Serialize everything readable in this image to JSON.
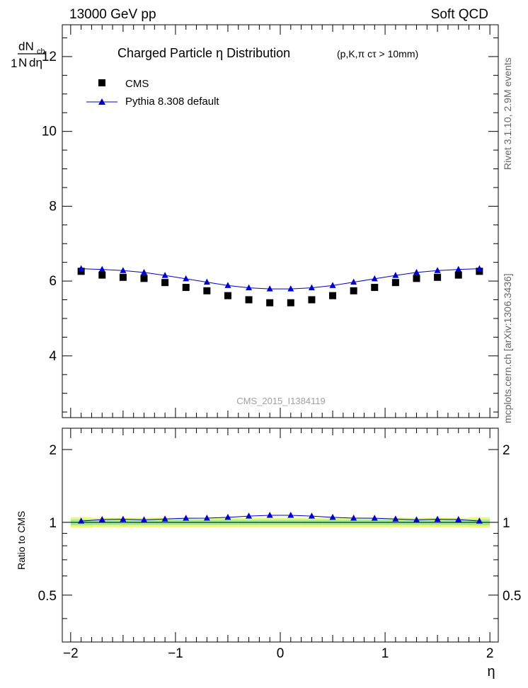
{
  "header": {
    "left": "13000 GeV pp",
    "right": "Soft QCD"
  },
  "side": {
    "rivet": "Rivet 3.1.10,  2.9M events",
    "mcplots": "mcplots.cern.ch [arXiv:1306.3436]"
  },
  "chart_data": [
    {
      "type": "scatter",
      "title": "Charged Particle  η Distribution",
      "subtitle": "(p,K,π cτ > 10mm)",
      "analysis": "CMS_2015_I1384119",
      "ylabel": {
        "one": "1",
        "N": "N",
        "dN": "dN",
        "sub": "ch",
        "deta": "dη"
      },
      "xlim": [
        -2.08,
        2.08
      ],
      "ylim": [
        2.35,
        12.85
      ],
      "yticks": [
        4,
        6,
        8,
        10,
        12
      ],
      "xticks": [
        -2,
        -1,
        0,
        1,
        2
      ],
      "xtick_labels": [
        "−2",
        "−1",
        "0",
        "1",
        "2"
      ],
      "legend": {
        "placement": "top-left"
      },
      "x": [
        -1.9,
        -1.7,
        -1.5,
        -1.3,
        -1.1,
        -0.9,
        -0.7,
        -0.5,
        -0.3,
        -0.1,
        0.1,
        0.3,
        0.5,
        0.7,
        0.9,
        1.1,
        1.3,
        1.5,
        1.7,
        1.9
      ],
      "series": [
        {
          "name": "CMS",
          "marker": "square",
          "color": "#000000",
          "values": [
            6.26,
            6.16,
            6.1,
            6.07,
            5.96,
            5.83,
            5.74,
            5.61,
            5.5,
            5.42,
            5.42,
            5.5,
            5.61,
            5.74,
            5.83,
            5.96,
            6.07,
            6.1,
            6.16,
            6.26
          ]
        },
        {
          "name": "Pythia 8.308 default",
          "marker": "triangle",
          "color": "#0000cc",
          "values": [
            6.33,
            6.31,
            6.28,
            6.23,
            6.15,
            6.06,
            5.97,
            5.88,
            5.82,
            5.79,
            5.79,
            5.82,
            5.88,
            5.97,
            6.06,
            6.15,
            6.23,
            6.28,
            6.31,
            6.33
          ]
        }
      ]
    },
    {
      "type": "scatter",
      "ylabel": "Ratio to CMS",
      "xlabel": "η",
      "xlim": [
        -2.08,
        2.08
      ],
      "ylim": [
        0.32,
        2.45
      ],
      "yticks": [
        0.5,
        1,
        2
      ],
      "ytick_labels": [
        "0.5",
        "1",
        "2"
      ],
      "xticks": [
        -2,
        -1,
        0,
        1,
        2
      ],
      "xtick_labels": [
        "−2",
        "−1",
        "0",
        "1",
        "2"
      ],
      "x": [
        -1.9,
        -1.7,
        -1.5,
        -1.3,
        -1.1,
        -0.9,
        -0.7,
        -0.5,
        -0.3,
        -0.1,
        0.1,
        0.3,
        0.5,
        0.7,
        0.9,
        1.1,
        1.3,
        1.5,
        1.7,
        1.9
      ],
      "band_outer": {
        "color": "#f5f57a",
        "halfwidth": [
          0.05,
          0.045,
          0.045,
          0.045,
          0.045,
          0.045,
          0.045,
          0.045,
          0.045,
          0.045,
          0.045,
          0.045,
          0.045,
          0.045,
          0.045,
          0.045,
          0.045,
          0.045,
          0.045,
          0.05
        ]
      },
      "band_inner": {
        "color": "#99ee99",
        "halfwidth": [
          0.028,
          0.025,
          0.025,
          0.025,
          0.025,
          0.025,
          0.025,
          0.025,
          0.025,
          0.025,
          0.025,
          0.025,
          0.025,
          0.025,
          0.025,
          0.025,
          0.025,
          0.025,
          0.025,
          0.028
        ]
      },
      "reference_line": {
        "y": 1,
        "color": "#000000"
      },
      "series": [
        {
          "name": "Pythia 8.308 default",
          "marker": "triangle",
          "color": "#0000cc",
          "values": [
            1.012,
            1.027,
            1.03,
            1.024,
            1.032,
            1.04,
            1.041,
            1.049,
            1.061,
            1.069,
            1.069,
            1.061,
            1.049,
            1.041,
            1.04,
            1.032,
            1.024,
            1.03,
            1.027,
            1.012
          ]
        }
      ]
    }
  ]
}
